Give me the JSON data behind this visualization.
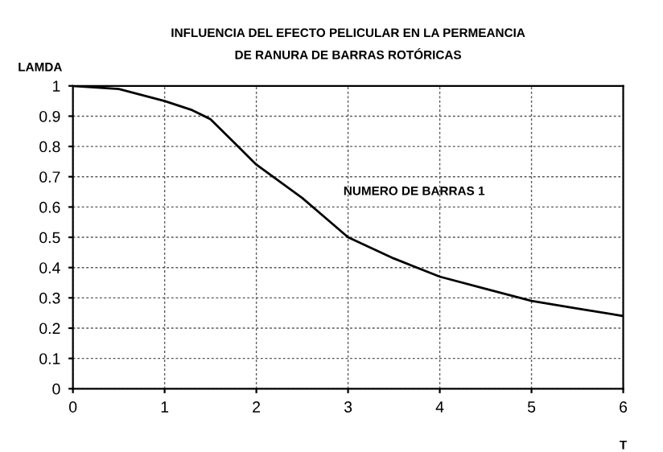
{
  "chart_data": {
    "type": "line",
    "title": "INFLUENCIA DEL EFECTO PELICULAR EN LA PERMEANCIA\nDE RANURA DE BARRAS ROTÓRICAS",
    "xlabel": "T",
    "ylabel": "LAMDA",
    "annotations": [
      "NUMERO DE BARRAS 1"
    ],
    "series": [
      {
        "color": "#000000",
        "x": [
          0,
          0.5,
          1,
          1.3,
          1.5,
          1.8,
          2,
          2.5,
          3,
          3.5,
          4,
          4.5,
          5,
          5.5,
          6
        ],
        "values": [
          1,
          0.99,
          0.95,
          0.92,
          0.89,
          0.8,
          0.74,
          0.63,
          0.5,
          0.43,
          0.37,
          0.33,
          0.29,
          0.265,
          0.24
        ]
      }
    ],
    "xlim": [
      0,
      6
    ],
    "xticks": [
      0,
      1,
      2,
      3,
      4,
      5,
      6
    ],
    "ylim": [
      0,
      1
    ],
    "yticks": [
      0,
      0.1,
      0.2,
      0.3,
      0.4,
      0.5,
      0.6,
      0.7,
      0.8,
      0.9,
      1
    ],
    "grid": true,
    "legend": false,
    "marker": "none",
    "line_style": "solid"
  }
}
